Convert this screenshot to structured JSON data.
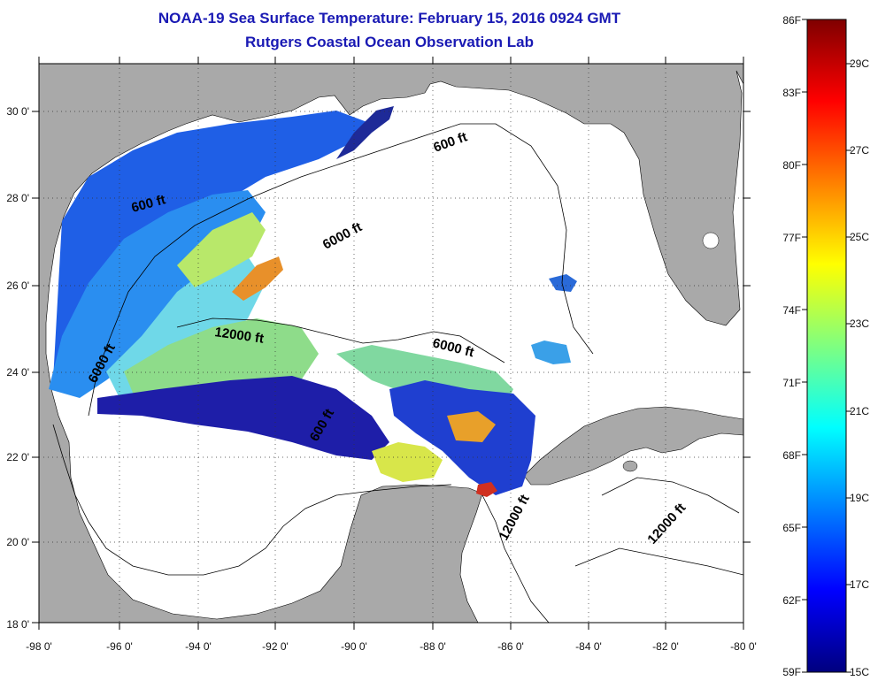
{
  "header": {
    "title": "NOAA-19 Sea Surface Temperature:  February 15, 2016 0924 GMT",
    "subtitle": "Rutgers Coastal Ocean Observation Lab"
  },
  "axes": {
    "longitude_labels": [
      "-98 0'",
      "-96 0'",
      "-94 0'",
      "-92 0'",
      "-90 0'",
      "-88 0'",
      "-86 0'",
      "-84 0'",
      "-82 0'",
      "-80 0'"
    ],
    "latitude_labels": [
      "30 0'",
      "28 0'",
      "26 0'",
      "24 0'",
      "22 0'",
      "20 0'",
      "18 0'"
    ],
    "lon_range": [
      -98,
      -80
    ],
    "lat_range": [
      18,
      31
    ]
  },
  "contour_labels": [
    "600 ft",
    "6000 ft",
    "600 ft",
    "12000 ft",
    "6000 ft",
    "6000 ft",
    "600 ft",
    "12000 ft",
    "12000 ft"
  ],
  "colorbar": {
    "fahrenheit_labels": [
      "86F",
      "83F",
      "80F",
      "77F",
      "74F",
      "71F",
      "68F",
      "65F",
      "62F",
      "59F"
    ],
    "celsius_labels": [
      "29C",
      "27C",
      "25C",
      "23C",
      "21C",
      "19C",
      "17C",
      "15C"
    ],
    "range_f": [
      59,
      86
    ],
    "range_c": [
      15,
      30
    ]
  },
  "colors": {
    "land": "#a9a9a9",
    "ocean_nodata": "#ffffff",
    "title": "#1a1ab4"
  }
}
